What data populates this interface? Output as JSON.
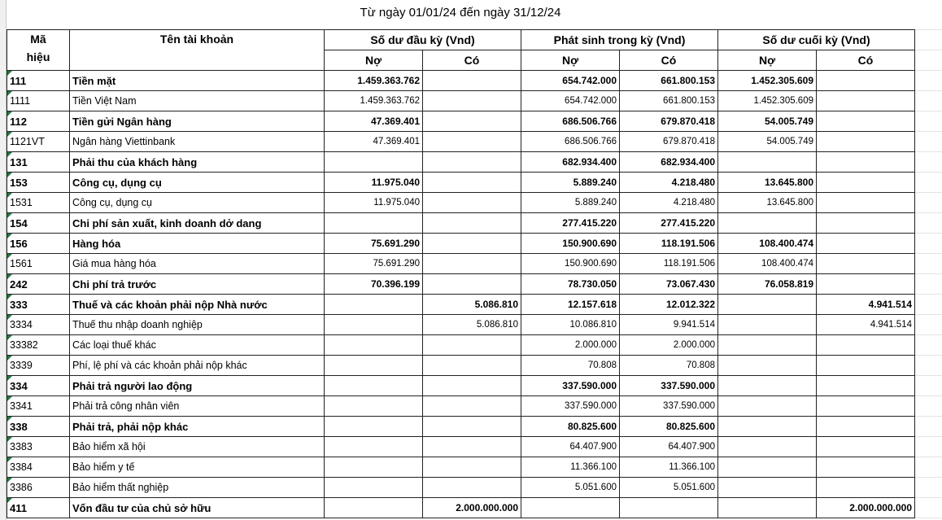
{
  "title": "Từ ngày 01/01/24 đến ngày 31/12/24",
  "header": {
    "code": "Mã\nhiệu",
    "name": "Tên tài khoản",
    "groups": [
      "Số dư đầu kỳ (Vnd)",
      "Phát sinh trong kỳ (Vnd)",
      "Số dư cuối kỳ (Vnd)"
    ],
    "sub": [
      "Nợ",
      "Có",
      "Nợ",
      "Có",
      "Nợ",
      "Có"
    ]
  },
  "rows": [
    {
      "code": "111",
      "name": "Tiền mặt",
      "bold": true,
      "values": [
        "1.459.363.762",
        null,
        "654.742.000",
        "661.800.153",
        "1.452.305.609",
        null
      ]
    },
    {
      "code": "1111",
      "name": "Tiền Việt Nam",
      "bold": false,
      "values": [
        "1.459.363.762",
        null,
        "654.742.000",
        "661.800.153",
        "1.452.305.609",
        null
      ]
    },
    {
      "code": "112",
      "name": "Tiền gửi Ngân hàng",
      "bold": true,
      "values": [
        "47.369.401",
        null,
        "686.506.766",
        "679.870.418",
        "54.005.749",
        null
      ]
    },
    {
      "code": "1121VT",
      "name": "Ngân hàng Viettinbank",
      "bold": false,
      "values": [
        "47.369.401",
        null,
        "686.506.766",
        "679.870.418",
        "54.005.749",
        null
      ]
    },
    {
      "code": "131",
      "name": "Phải thu của khách hàng",
      "bold": true,
      "values": [
        null,
        null,
        "682.934.400",
        "682.934.400",
        null,
        null
      ]
    },
    {
      "code": "153",
      "name": "Công cụ, dụng cụ",
      "bold": true,
      "values": [
        "11.975.040",
        null,
        "5.889.240",
        "4.218.480",
        "13.645.800",
        null
      ]
    },
    {
      "code": "1531",
      "name": "Công cụ, dụng cụ",
      "bold": false,
      "values": [
        "11.975.040",
        null,
        "5.889.240",
        "4.218.480",
        "13.645.800",
        null
      ]
    },
    {
      "code": "154",
      "name": "Chi phí sản xuất, kinh doanh dở dang",
      "bold": true,
      "values": [
        null,
        null,
        "277.415.220",
        "277.415.220",
        null,
        null
      ]
    },
    {
      "code": "156",
      "name": "Hàng hóa",
      "bold": true,
      "values": [
        "75.691.290",
        null,
        "150.900.690",
        "118.191.506",
        "108.400.474",
        null
      ]
    },
    {
      "code": "1561",
      "name": "Giá mua hàng hóa",
      "bold": false,
      "values": [
        "75.691.290",
        null,
        "150.900.690",
        "118.191.506",
        "108.400.474",
        null
      ]
    },
    {
      "code": "242",
      "name": "Chi phí trả trước",
      "bold": true,
      "values": [
        "70.396.199",
        null,
        "78.730.050",
        "73.067.430",
        "76.058.819",
        null
      ]
    },
    {
      "code": "333",
      "name": "Thuế và các khoản phải nộp Nhà nước",
      "bold": true,
      "values": [
        null,
        "5.086.810",
        "12.157.618",
        "12.012.322",
        null,
        "4.941.514"
      ]
    },
    {
      "code": "3334",
      "name": "Thuế thu nhập doanh nghiệp",
      "bold": false,
      "values": [
        null,
        "5.086.810",
        "10.086.810",
        "9.941.514",
        null,
        "4.941.514"
      ]
    },
    {
      "code": "33382",
      "name": "Các loại thuế khác",
      "bold": false,
      "values": [
        null,
        null,
        "2.000.000",
        "2.000.000",
        null,
        null
      ]
    },
    {
      "code": "3339",
      "name": "Phí, lệ phí và các khoản phải nộp khác",
      "bold": false,
      "values": [
        null,
        null,
        "70.808",
        "70.808",
        null,
        null
      ]
    },
    {
      "code": "334",
      "name": "Phải trả người lao động",
      "bold": true,
      "values": [
        null,
        null,
        "337.590.000",
        "337.590.000",
        null,
        null
      ]
    },
    {
      "code": "3341",
      "name": "Phải trả công nhân viên",
      "bold": false,
      "values": [
        null,
        null,
        "337.590.000",
        "337.590.000",
        null,
        null
      ]
    },
    {
      "code": "338",
      "name": "Phải trả, phải nộp khác",
      "bold": true,
      "values": [
        null,
        null,
        "80.825.600",
        "80.825.600",
        null,
        null
      ]
    },
    {
      "code": "3383",
      "name": "Bảo hiểm xã hội",
      "bold": false,
      "values": [
        null,
        null,
        "64.407.900",
        "64.407.900",
        null,
        null
      ]
    },
    {
      "code": "3384",
      "name": "Bảo hiểm y tế",
      "bold": false,
      "values": [
        null,
        null,
        "11.366.100",
        "11.366.100",
        null,
        null
      ]
    },
    {
      "code": "3386",
      "name": "Bảo hiểm thất nghiệp",
      "bold": false,
      "values": [
        null,
        null,
        "5.051.600",
        "5.051.600",
        null,
        null
      ]
    },
    {
      "code": "411",
      "name": "Vốn đầu tư của chủ sở hữu",
      "bold": true,
      "values": [
        null,
        "2.000.000.000",
        null,
        null,
        null,
        "2.000.000.000"
      ]
    }
  ]
}
